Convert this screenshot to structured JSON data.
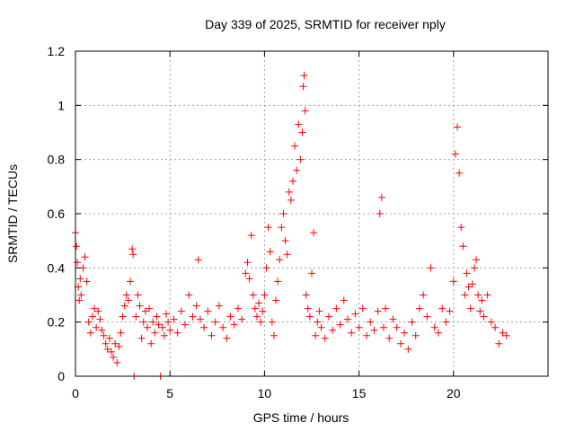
{
  "chart_data": {
    "type": "scatter",
    "title": "Day 339 of 2025, SRMTID for receiver nply",
    "xlabel": "GPS time / hours",
    "ylabel": "SRMTID / TECUs",
    "xlim": [
      0,
      25
    ],
    "ylim": [
      0,
      1.2
    ],
    "xticks": [
      0,
      5,
      10,
      15,
      20
    ],
    "yticks": [
      0,
      0.2,
      0.4,
      0.6,
      0.8,
      1,
      1.2
    ],
    "xtick_labels": [
      "0",
      "5",
      "10",
      "15",
      "20"
    ],
    "ytick_labels": [
      "0",
      "0.2",
      "0.4",
      "0.6",
      "0.8",
      "1",
      "1.2"
    ],
    "grid": true,
    "marker": "+",
    "color": "#ff0000",
    "series": [
      {
        "name": "SRMTID",
        "x": [
          0.0,
          0.05,
          0.1,
          0.15,
          0.2,
          0.25,
          0.3,
          0.4,
          0.5,
          0.6,
          0.7,
          0.8,
          0.9,
          1.0,
          1.1,
          1.2,
          1.3,
          1.4,
          1.5,
          1.6,
          1.7,
          1.8,
          1.9,
          2.0,
          2.1,
          2.2,
          2.3,
          2.4,
          2.5,
          2.6,
          2.7,
          2.8,
          2.9,
          3.0,
          3.05,
          3.1,
          3.2,
          3.3,
          3.4,
          3.5,
          3.6,
          3.7,
          3.8,
          3.9,
          4.0,
          4.1,
          4.2,
          4.3,
          4.4,
          4.5,
          4.6,
          4.7,
          4.8,
          4.9,
          5.0,
          5.2,
          5.4,
          5.6,
          5.8,
          6.0,
          6.2,
          6.4,
          6.5,
          6.6,
          6.8,
          7.0,
          7.2,
          7.4,
          7.6,
          7.8,
          8.0,
          8.2,
          8.4,
          8.6,
          8.8,
          9.0,
          9.1,
          9.2,
          9.3,
          9.4,
          9.5,
          9.6,
          9.7,
          9.8,
          9.9,
          10.0,
          10.1,
          10.2,
          10.3,
          10.4,
          10.5,
          10.6,
          10.7,
          10.8,
          10.9,
          11.0,
          11.1,
          11.2,
          11.3,
          11.4,
          11.5,
          11.6,
          11.7,
          11.8,
          11.9,
          12.0,
          12.05,
          12.1,
          12.15,
          12.2,
          12.3,
          12.4,
          12.5,
          12.6,
          12.7,
          12.8,
          12.9,
          13.0,
          13.2,
          13.4,
          13.6,
          13.8,
          14.0,
          14.2,
          14.4,
          14.6,
          14.8,
          15.0,
          15.2,
          15.4,
          15.6,
          15.8,
          16.0,
          16.1,
          16.2,
          16.3,
          16.4,
          16.6,
          16.8,
          17.0,
          17.2,
          17.4,
          17.6,
          17.8,
          18.0,
          18.2,
          18.4,
          18.6,
          18.8,
          19.0,
          19.2,
          19.4,
          19.6,
          19.8,
          20.0,
          20.1,
          20.2,
          20.3,
          20.4,
          20.5,
          20.6,
          20.7,
          20.8,
          20.9,
          21.0,
          21.1,
          21.2,
          21.3,
          21.4,
          21.5,
          21.6,
          21.8,
          22.0,
          22.2,
          22.4,
          22.6,
          22.8
        ],
        "y": [
          0.53,
          0.48,
          0.42,
          0.33,
          0.28,
          0.36,
          0.3,
          0.4,
          0.44,
          0.35,
          0.2,
          0.16,
          0.22,
          0.25,
          0.18,
          0.24,
          0.21,
          0.17,
          0.15,
          0.12,
          0.1,
          0.14,
          0.09,
          0.07,
          0.12,
          0.05,
          0.11,
          0.16,
          0.22,
          0.26,
          0.3,
          0.28,
          0.35,
          0.47,
          0.45,
          0.0,
          0.22,
          0.3,
          0.26,
          0.14,
          0.2,
          0.24,
          0.18,
          0.25,
          0.12,
          0.2,
          0.16,
          0.22,
          0.19,
          0.0,
          0.18,
          0.15,
          0.23,
          0.2,
          0.17,
          0.21,
          0.16,
          0.24,
          0.19,
          0.3,
          0.22,
          0.26,
          0.43,
          0.21,
          0.18,
          0.24,
          0.15,
          0.2,
          0.26,
          0.18,
          0.14,
          0.22,
          0.19,
          0.25,
          0.21,
          0.38,
          0.42,
          0.36,
          0.52,
          0.3,
          0.25,
          0.22,
          0.27,
          0.2,
          0.24,
          0.3,
          0.4,
          0.55,
          0.46,
          0.2,
          0.15,
          0.28,
          0.35,
          0.43,
          0.55,
          0.6,
          0.5,
          0.45,
          0.68,
          0.65,
          0.72,
          0.85,
          0.76,
          0.93,
          0.8,
          0.9,
          1.07,
          1.11,
          0.98,
          0.3,
          0.25,
          0.22,
          0.38,
          0.53,
          0.15,
          0.2,
          0.24,
          0.18,
          0.14,
          0.22,
          0.17,
          0.25,
          0.19,
          0.28,
          0.21,
          0.16,
          0.23,
          0.18,
          0.25,
          0.15,
          0.2,
          0.17,
          0.24,
          0.6,
          0.66,
          0.18,
          0.25,
          0.14,
          0.21,
          0.18,
          0.12,
          0.16,
          0.1,
          0.2,
          0.15,
          0.25,
          0.3,
          0.22,
          0.4,
          0.18,
          0.16,
          0.25,
          0.2,
          0.24,
          0.35,
          0.82,
          0.92,
          0.75,
          0.55,
          0.48,
          0.3,
          0.38,
          0.33,
          0.25,
          0.34,
          0.4,
          0.43,
          0.3,
          0.24,
          0.28,
          0.22,
          0.3,
          0.2,
          0.18,
          0.12,
          0.16,
          0.15
        ]
      }
    ]
  }
}
